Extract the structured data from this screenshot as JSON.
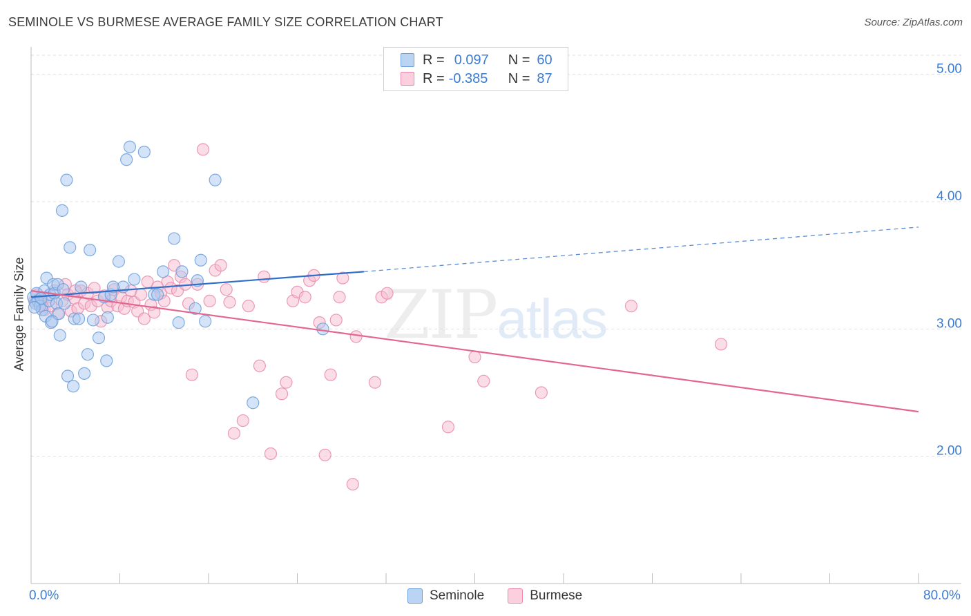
{
  "title": "SEMINOLE VS BURMESE AVERAGE FAMILY SIZE CORRELATION CHART",
  "source": "Source: ZipAtlas.com",
  "watermark": {
    "zip": "ZIP",
    "atlas": "atlas"
  },
  "legend": {
    "rows": [
      {
        "r_label": "R =",
        "r_value": "0.097",
        "n_label": "N =",
        "n_value": "60"
      },
      {
        "r_label": "R =",
        "r_value": "-0.385",
        "n_label": "N =",
        "n_value": "87"
      }
    ]
  },
  "colors": {
    "seminole_fill": "#a9c8f0",
    "seminole_stroke": "#6a9ddb",
    "seminole_line": "#2f6fc9",
    "burmese_fill": "#f7bcd0",
    "burmese_stroke": "#e889ab",
    "burmese_line": "#e3668f",
    "axis_text": "#3a7bd5",
    "grid": "#dddddd"
  },
  "chart_data": {
    "type": "scatter",
    "title": "SEMINOLE VS BURMESE AVERAGE FAMILY SIZE CORRELATION CHART",
    "xlabel": "",
    "ylabel": "Average Family Size",
    "xlim": [
      0,
      80
    ],
    "ylim": [
      1.0,
      5.15
    ],
    "x_tick_labels": [
      "0.0%",
      "80.0%"
    ],
    "y_ticks": [
      2.0,
      3.0,
      4.0,
      5.0
    ],
    "y_tick_labels": [
      "2.00",
      "3.00",
      "4.00",
      "5.00"
    ],
    "grid": true,
    "legend_position": "bottom",
    "series": [
      {
        "name": "Seminole",
        "trend": {
          "x": [
            0,
            30
          ],
          "y": [
            3.25,
            3.45
          ],
          "dashed_extension_to_x": 80,
          "dashed_y_at_end": 3.8
        },
        "points": [
          [
            0.2,
            3.25
          ],
          [
            0.4,
            3.2
          ],
          [
            0.5,
            3.28
          ],
          [
            0.6,
            3.22
          ],
          [
            0.8,
            3.18
          ],
          [
            1.0,
            3.15
          ],
          [
            1.2,
            3.3
          ],
          [
            1.3,
            3.1
          ],
          [
            1.4,
            3.4
          ],
          [
            1.6,
            3.22
          ],
          [
            1.7,
            3.27
          ],
          [
            1.8,
            3.05
          ],
          [
            2.0,
            3.35
          ],
          [
            2.1,
            3.28
          ],
          [
            2.3,
            3.2
          ],
          [
            2.4,
            3.35
          ],
          [
            2.5,
            3.12
          ],
          [
            2.6,
            2.95
          ],
          [
            2.8,
            3.93
          ],
          [
            3.0,
            3.2
          ],
          [
            3.2,
            4.17
          ],
          [
            3.3,
            2.63
          ],
          [
            3.5,
            3.64
          ],
          [
            3.8,
            2.55
          ],
          [
            3.9,
            3.08
          ],
          [
            4.3,
            3.08
          ],
          [
            4.5,
            3.33
          ],
          [
            4.8,
            2.65
          ],
          [
            5.1,
            2.8
          ],
          [
            5.3,
            3.62
          ],
          [
            5.6,
            3.07
          ],
          [
            6.1,
            2.93
          ],
          [
            6.6,
            3.25
          ],
          [
            6.8,
            2.75
          ],
          [
            6.9,
            3.09
          ],
          [
            7.2,
            3.27
          ],
          [
            7.9,
            3.53
          ],
          [
            8.3,
            3.33
          ],
          [
            8.6,
            4.33
          ],
          [
            8.9,
            4.43
          ],
          [
            9.3,
            3.39
          ],
          [
            10.2,
            4.39
          ],
          [
            11.1,
            3.27
          ],
          [
            11.4,
            3.27
          ],
          [
            11.9,
            3.45
          ],
          [
            12.9,
            3.71
          ],
          [
            13.3,
            3.05
          ],
          [
            13.6,
            3.45
          ],
          [
            14.8,
            3.16
          ],
          [
            15.0,
            3.38
          ],
          [
            15.3,
            3.54
          ],
          [
            15.7,
            3.06
          ],
          [
            16.6,
            4.17
          ],
          [
            20.0,
            2.42
          ],
          [
            26.3,
            3.0
          ],
          [
            0.9,
            3.24
          ],
          [
            1.9,
            3.06
          ],
          [
            2.9,
            3.31
          ],
          [
            0.3,
            3.17
          ],
          [
            7.4,
            3.33
          ]
        ]
      },
      {
        "name": "Burmese",
        "trend": {
          "x": [
            0,
            80
          ],
          "y": [
            3.3,
            2.35
          ]
        },
        "points": [
          [
            0.3,
            3.22
          ],
          [
            0.6,
            3.27
          ],
          [
            0.9,
            3.2
          ],
          [
            1.2,
            3.15
          ],
          [
            1.5,
            3.25
          ],
          [
            1.8,
            3.18
          ],
          [
            2.1,
            3.3
          ],
          [
            2.4,
            3.12
          ],
          [
            2.8,
            3.22
          ],
          [
            3.1,
            3.35
          ],
          [
            3.3,
            3.27
          ],
          [
            3.6,
            3.14
          ],
          [
            3.9,
            3.24
          ],
          [
            4.2,
            3.16
          ],
          [
            4.5,
            3.3
          ],
          [
            4.8,
            3.2
          ],
          [
            5.1,
            3.28
          ],
          [
            5.4,
            3.18
          ],
          [
            5.7,
            3.32
          ],
          [
            6.0,
            3.22
          ],
          [
            6.3,
            3.06
          ],
          [
            6.6,
            3.26
          ],
          [
            6.9,
            3.17
          ],
          [
            7.2,
            3.22
          ],
          [
            7.5,
            3.31
          ],
          [
            7.8,
            3.18
          ],
          [
            8.1,
            3.25
          ],
          [
            8.4,
            3.16
          ],
          [
            8.7,
            3.22
          ],
          [
            9.0,
            3.3
          ],
          [
            9.3,
            3.21
          ],
          [
            9.6,
            3.14
          ],
          [
            9.9,
            3.27
          ],
          [
            10.2,
            3.08
          ],
          [
            10.5,
            3.37
          ],
          [
            10.8,
            3.19
          ],
          [
            11.1,
            3.13
          ],
          [
            11.4,
            3.33
          ],
          [
            11.7,
            3.28
          ],
          [
            12.0,
            3.22
          ],
          [
            12.3,
            3.37
          ],
          [
            12.6,
            3.32
          ],
          [
            12.9,
            3.5
          ],
          [
            13.2,
            3.3
          ],
          [
            13.5,
            3.41
          ],
          [
            13.9,
            3.35
          ],
          [
            14.2,
            3.2
          ],
          [
            14.5,
            2.64
          ],
          [
            15.0,
            3.35
          ],
          [
            15.5,
            4.41
          ],
          [
            16.1,
            3.22
          ],
          [
            16.6,
            3.46
          ],
          [
            17.1,
            3.5
          ],
          [
            17.6,
            3.31
          ],
          [
            17.9,
            3.21
          ],
          [
            18.3,
            2.18
          ],
          [
            19.1,
            2.28
          ],
          [
            19.6,
            3.18
          ],
          [
            20.6,
            2.71
          ],
          [
            21.0,
            3.41
          ],
          [
            21.6,
            2.02
          ],
          [
            22.6,
            2.49
          ],
          [
            23.0,
            2.58
          ],
          [
            23.6,
            3.22
          ],
          [
            24.0,
            3.29
          ],
          [
            24.7,
            3.25
          ],
          [
            25.1,
            3.38
          ],
          [
            25.5,
            3.42
          ],
          [
            26.0,
            3.05
          ],
          [
            26.5,
            2.01
          ],
          [
            27.0,
            2.64
          ],
          [
            27.5,
            3.07
          ],
          [
            27.8,
            3.25
          ],
          [
            28.1,
            3.4
          ],
          [
            29.0,
            1.78
          ],
          [
            29.3,
            2.94
          ],
          [
            31.0,
            2.58
          ],
          [
            31.6,
            3.25
          ],
          [
            32.1,
            3.28
          ],
          [
            37.6,
            2.23
          ],
          [
            40.0,
            2.78
          ],
          [
            40.8,
            2.59
          ],
          [
            46.0,
            2.5
          ],
          [
            54.1,
            3.18
          ],
          [
            62.2,
            2.88
          ],
          [
            1.0,
            3.18
          ],
          [
            4.0,
            3.3
          ]
        ]
      }
    ]
  }
}
